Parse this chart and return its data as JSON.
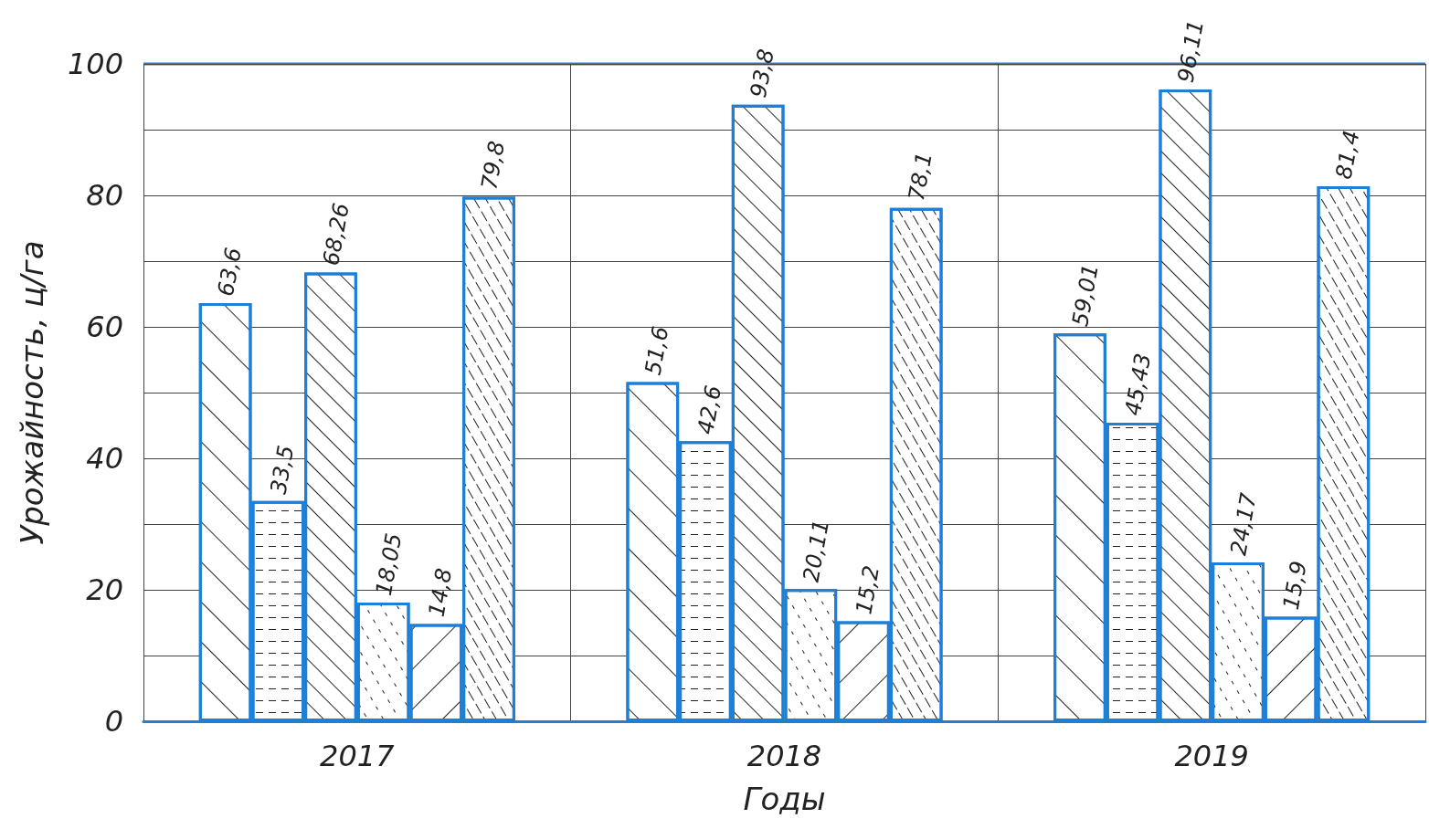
{
  "chart_data": {
    "type": "bar",
    "xlabel": "Годы",
    "ylabel": "Урожайность, ц/га",
    "categories": [
      "2017",
      "2018",
      "2019"
    ],
    "series": [
      {
        "color": "#1e7fd8",
        "values": [
          63.6,
          51.6,
          59.01
        ],
        "value_labels": [
          "63,6",
          "51,6",
          "59,01"
        ]
      },
      {
        "color": "#1e7fd8",
        "values": [
          33.5,
          42.6,
          45.43
        ],
        "value_labels": [
          "33,5",
          "42,6",
          "45,43"
        ]
      },
      {
        "color": "#1e7fd8",
        "values": [
          68.26,
          93.8,
          96.11
        ],
        "value_labels": [
          "68,26",
          "93,8",
          "96,11"
        ]
      },
      {
        "color": "#1e7fd8",
        "values": [
          18.05,
          20.11,
          24.17
        ],
        "value_labels": [
          "18,05",
          "20,11",
          "24,17"
        ]
      },
      {
        "color": "#1e7fd8",
        "values": [
          14.8,
          15.2,
          15.9
        ],
        "value_labels": [
          "14,8",
          "15,2",
          "15,9"
        ]
      },
      {
        "color": "#1e7fd8",
        "values": [
          79.8,
          78.1,
          81.4
        ],
        "value_labels": [
          "79,8",
          "78,1",
          "81,4"
        ]
      }
    ],
    "ylim": [
      0,
      100
    ],
    "yticks": [
      0,
      {
        "value": 10,
        "label": null
      },
      20,
      {
        "value": 30,
        "label": null
      },
      40,
      {
        "value": 50,
        "label": null
      },
      60,
      {
        "value": 70,
        "label": null
      },
      80,
      {
        "value": 90,
        "label": null
      },
      100
    ],
    "grid": true
  }
}
